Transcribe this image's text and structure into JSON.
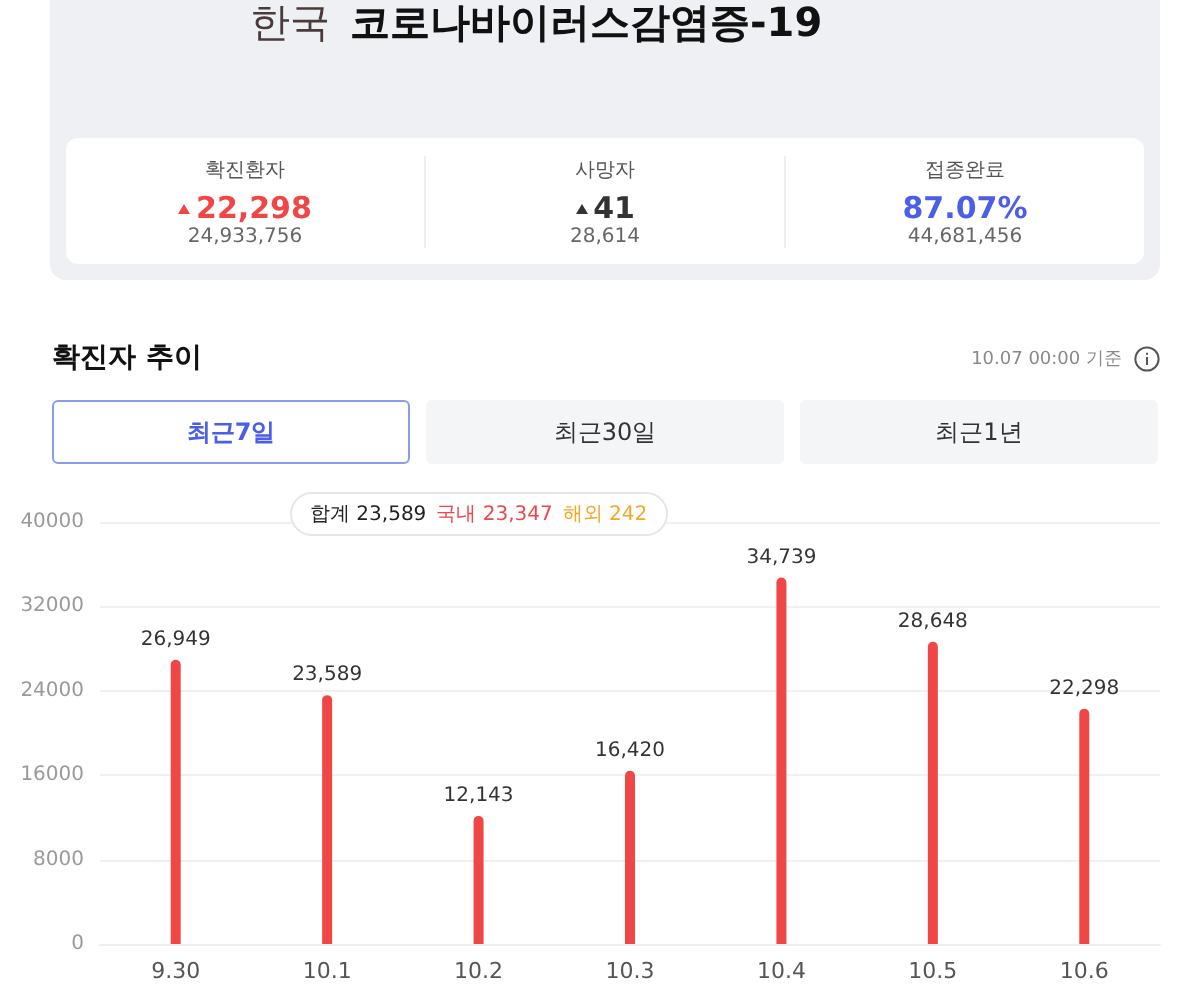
{
  "chart_data": {
    "type": "bar",
    "title": "한국 코로나바이러스감염증-19",
    "subtitle": "확진자 추이",
    "categories": [
      "9.30",
      "10.1",
      "10.2",
      "10.3",
      "10.4",
      "10.5",
      "10.6"
    ],
    "values": [
      26949,
      23589,
      12143,
      16420,
      34739,
      28648,
      22298
    ],
    "color": "#f04646",
    "ylim": [
      0,
      40000
    ],
    "yticks": [
      0,
      8000,
      16000,
      24000,
      32000,
      40000
    ],
    "grid": "y",
    "value_labels": [
      "26,949",
      "23,589",
      "12,143",
      "16,420",
      "34,739",
      "28,648",
      "22,298"
    ],
    "annotations": [
      "확진환자",
      "22,298",
      "24,933,756",
      "사망자",
      "41",
      "28,614",
      "접종완료",
      "87.07%",
      "44,681,456",
      "10.07 00:00 기준",
      "최근7일",
      "최근30일",
      "최근1년",
      "합계 23,589",
      "국내 23,347",
      "해외 242"
    ]
  }
}
